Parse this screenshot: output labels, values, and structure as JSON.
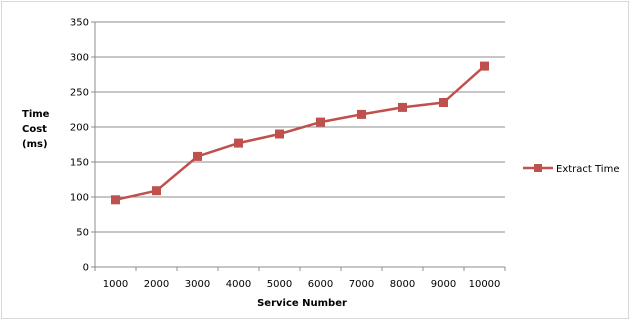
{
  "chart_data": {
    "type": "line",
    "title": "",
    "xlabel": "Service Number",
    "ylabel_lines": [
      "Time",
      "Cost",
      "(ms)"
    ],
    "categories": [
      "1000",
      "2000",
      "3000",
      "4000",
      "5000",
      "6000",
      "7000",
      "8000",
      "9000",
      "10000"
    ],
    "ylim": [
      0,
      350
    ],
    "yticks": [
      0,
      50,
      100,
      150,
      200,
      250,
      300,
      350
    ],
    "grid": "horizontal",
    "legend_position": "right",
    "series": [
      {
        "name": "Extract Time",
        "color": "#c0504d",
        "marker": "square",
        "values": [
          96,
          109,
          158,
          177,
          190,
          207,
          218,
          228,
          235,
          287
        ]
      }
    ]
  }
}
